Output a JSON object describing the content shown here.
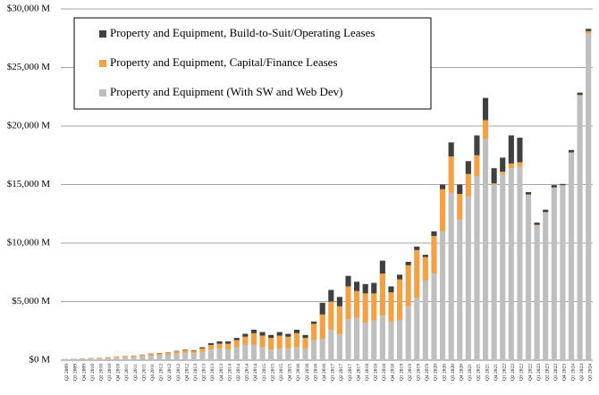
{
  "chart_data": {
    "type": "stacked_bar",
    "categories": [
      "Q2 2009",
      "Q3 2009",
      "Q4 2009",
      "Q1 2010",
      "Q2 2010",
      "Q3 2010",
      "Q4 2010",
      "Q1 2011",
      "Q2 2011",
      "Q3 2011",
      "Q4 2011",
      "Q1 2012",
      "Q2 2012",
      "Q3 2012",
      "Q4 2012",
      "Q1 2013",
      "Q2 2013",
      "Q3 2013",
      "Q4 2013",
      "Q1 2014",
      "Q2 2014",
      "Q3 2014",
      "Q4 2014",
      "Q1 2015",
      "Q2 2015",
      "Q3 2015",
      "Q4 2015",
      "Q1 2016",
      "Q2 2016",
      "Q3 2016",
      "Q4 2016",
      "Q1 2017",
      "Q2 2017",
      "Q3 2017",
      "Q4 2017",
      "Q1 2018",
      "Q2 2018",
      "Q3 2018",
      "Q4 2018",
      "Q1 2019",
      "Q2 2019",
      "Q3 2019",
      "Q4 2019",
      "Q1 2020",
      "Q2 2020",
      "Q3 2020",
      "Q4 2020",
      "Q1 2021",
      "Q2 2021",
      "Q3 2021",
      "Q4 2021",
      "Q1 2022",
      "Q2 2022",
      "Q3 2022",
      "Q4 2022",
      "Q1 2023",
      "Q2 2023",
      "Q3 2023",
      "Q4 2023",
      "Q1 2024",
      "Q2 2024",
      "Q3 2024"
    ],
    "series": [
      {
        "name": "Property and Equipment (With SW and Web Dev)",
        "color": "#bfbfbf",
        "values": [
          80,
          100,
          120,
          150,
          170,
          200,
          250,
          280,
          300,
          330,
          380,
          420,
          460,
          550,
          620,
          600,
          700,
          900,
          1000,
          900,
          1100,
          1300,
          1300,
          1100,
          900,
          1000,
          1000,
          1100,
          1000,
          1700,
          1800,
          2600,
          2200,
          3500,
          3600,
          3200,
          3400,
          3800,
          3300,
          3400,
          4600,
          5300,
          6800,
          7400,
          11000,
          14300,
          12000,
          14000,
          15700,
          18900,
          15000,
          15900,
          16400,
          16500,
          14100,
          11500,
          12600,
          14700,
          14900,
          17700,
          22600,
          27900
        ]
      },
      {
        "name": "Property and Equipment, Capital/Finance Leases",
        "color": "#f4a044",
        "values": [
          20,
          30,
          40,
          40,
          50,
          60,
          80,
          90,
          100,
          120,
          150,
          150,
          170,
          200,
          220,
          200,
          300,
          400,
          400,
          500,
          600,
          700,
          1000,
          1000,
          1000,
          1100,
          1000,
          1200,
          900,
          1400,
          2100,
          2400,
          2400,
          2800,
          2300,
          2500,
          2300,
          3600,
          2500,
          3500,
          3500,
          4100,
          2000,
          3200,
          3600,
          3100,
          2200,
          1900,
          1800,
          1600,
          100,
          200,
          400,
          400,
          50,
          50,
          50,
          50,
          50,
          50,
          50,
          200
        ]
      },
      {
        "name": "Property and Equipment, Build-to-Suit/Operating Leases",
        "color": "#404040",
        "values": [
          0,
          0,
          0,
          0,
          0,
          0,
          0,
          0,
          0,
          20,
          30,
          30,
          30,
          40,
          50,
          50,
          100,
          150,
          200,
          200,
          200,
          250,
          300,
          300,
          250,
          300,
          250,
          300,
          250,
          200,
          1000,
          1000,
          800,
          900,
          800,
          800,
          900,
          1100,
          500,
          400,
          300,
          300,
          200,
          400,
          400,
          1200,
          800,
          1100,
          1700,
          1900,
          1300,
          1200,
          2400,
          2100,
          200,
          200,
          200,
          200,
          100,
          200,
          200,
          200
        ]
      }
    ],
    "ylim": [
      0,
      30000
    ],
    "yticks": [
      {
        "value": 0,
        "label": "$0 M"
      },
      {
        "value": 5000,
        "label": "$5,000 M"
      },
      {
        "value": 10000,
        "label": "$10,000 M"
      },
      {
        "value": 15000,
        "label": "$15,000 M"
      },
      {
        "value": 20000,
        "label": "$20,000 M"
      },
      {
        "value": 25000,
        "label": "$25,000 M"
      },
      {
        "value": 30000,
        "label": "$30,000 M"
      }
    ],
    "grid": true,
    "legend": "top-left"
  }
}
